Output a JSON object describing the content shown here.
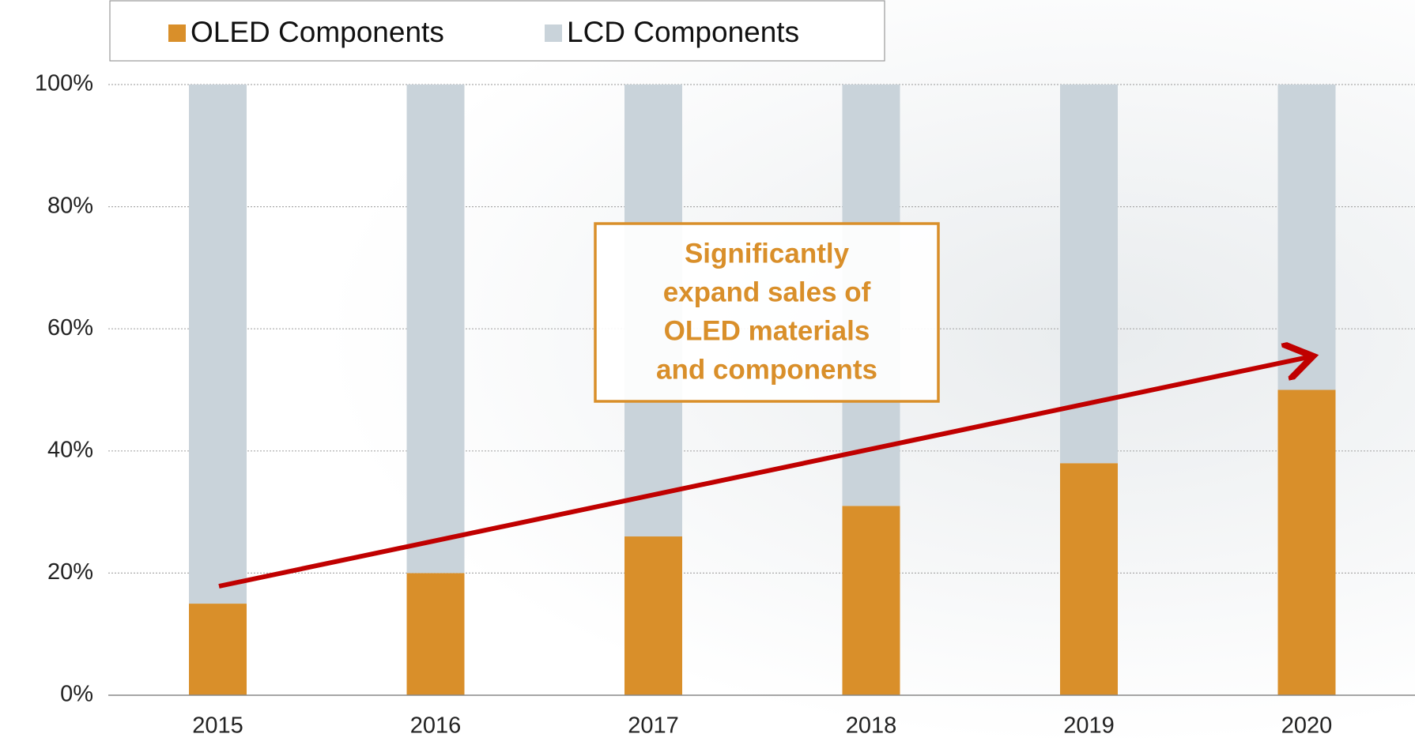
{
  "chart_data": {
    "type": "stacked_bar",
    "categories": [
      "2015",
      "2016",
      "2017",
      "2018",
      "2019",
      "2020"
    ],
    "series": [
      {
        "name": "OLED Components",
        "color": "#d98f2a",
        "values": [
          15,
          20,
          26,
          31,
          38,
          50
        ]
      },
      {
        "name": "LCD Components",
        "color": "#c9d3da",
        "values": [
          85,
          80,
          74,
          69,
          62,
          50
        ]
      }
    ],
    "ylim": [
      0,
      100
    ],
    "yticks": [
      {
        "value": 0,
        "label": "0%"
      },
      {
        "value": 20,
        "label": "20%"
      },
      {
        "value": 40,
        "label": "40%"
      },
      {
        "value": 60,
        "label": "60%"
      },
      {
        "value": 80,
        "label": "80%"
      },
      {
        "value": 100,
        "label": "100%"
      }
    ],
    "grid": true,
    "annotation": [
      "Significantly",
      "expand sales of",
      "OLED materials",
      "and components"
    ]
  }
}
